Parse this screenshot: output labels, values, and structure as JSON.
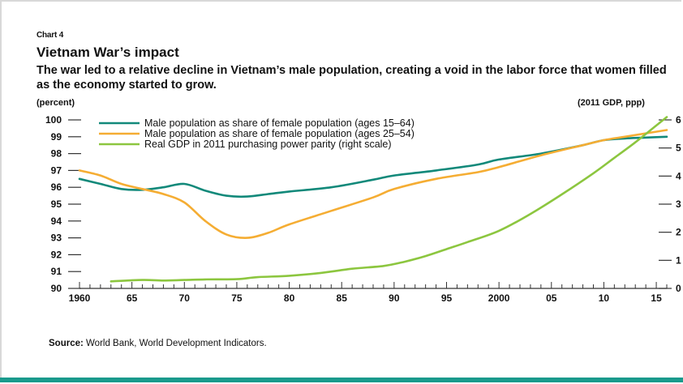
{
  "chart_label": "Chart 4",
  "title": "Vietnam War’s impact",
  "subtitle": "The war led to a relative decline in Vietnam’s male population, creating a void in the labor force that women filled as the economy started to grow.",
  "source_prefix": "Source:",
  "source_text": " World Bank, World Development Indicators.",
  "colors": {
    "teal": "#12897a",
    "orange": "#f5ad33",
    "green": "#8cc63f",
    "axis": "#333333",
    "bottom_rule": "#1a9a8c"
  },
  "chart_data": {
    "type": "line",
    "title": "Vietnam War’s impact",
    "y_left_label": "(percent)",
    "y_right_label": "(2011 GDP, ppp)",
    "x_range": [
      1960,
      2016
    ],
    "y_left_range": [
      90,
      100
    ],
    "y_right_range": [
      0,
      6
    ],
    "x_tick_labels": [
      {
        "x": 1960,
        "label": "1960"
      },
      {
        "x": 1965,
        "label": "65"
      },
      {
        "x": 1970,
        "label": "70"
      },
      {
        "x": 1975,
        "label": "75"
      },
      {
        "x": 1980,
        "label": "80"
      },
      {
        "x": 1985,
        "label": "85"
      },
      {
        "x": 1990,
        "label": "90"
      },
      {
        "x": 1995,
        "label": "95"
      },
      {
        "x": 2000,
        "label": "2000"
      },
      {
        "x": 2005,
        "label": "05"
      },
      {
        "x": 2010,
        "label": "10"
      },
      {
        "x": 2015,
        "label": "15"
      }
    ],
    "y_left_ticks": [
      90,
      91,
      92,
      93,
      94,
      95,
      96,
      97,
      98,
      99,
      100
    ],
    "y_right_ticks": [
      0,
      1,
      2,
      3,
      4,
      5,
      6
    ],
    "legend_position": "top-left",
    "grid": false,
    "series": [
      {
        "name": "Male population as share of female population (ages 15–64)",
        "axis": "left",
        "color_key": "teal",
        "x": [
          1960,
          1962,
          1964,
          1966,
          1968,
          1970,
          1972,
          1974,
          1976,
          1978,
          1980,
          1984,
          1988,
          1990,
          1994,
          1998,
          2000,
          2004,
          2008,
          2010,
          2012,
          2014,
          2016
        ],
        "y": [
          96.5,
          96.2,
          95.9,
          95.85,
          96.0,
          96.2,
          95.8,
          95.5,
          95.45,
          95.6,
          95.75,
          96.0,
          96.45,
          96.7,
          97.0,
          97.35,
          97.65,
          98.0,
          98.5,
          98.8,
          98.9,
          98.95,
          99.0
        ]
      },
      {
        "name": "Male population as share of female population (ages 25–54)",
        "axis": "left",
        "color_key": "orange",
        "x": [
          1960,
          1962,
          1964,
          1966,
          1968,
          1970,
          1972,
          1974,
          1976,
          1978,
          1980,
          1984,
          1988,
          1990,
          1994,
          1998,
          2000,
          2004,
          2008,
          2010,
          2012,
          2014,
          2016
        ],
        "y": [
          97.0,
          96.7,
          96.2,
          95.9,
          95.6,
          95.1,
          94.0,
          93.2,
          93.0,
          93.3,
          93.8,
          94.6,
          95.4,
          95.9,
          96.5,
          96.9,
          97.2,
          97.9,
          98.5,
          98.8,
          99.0,
          99.2,
          99.4
        ]
      },
      {
        "name": "Real GDP in 2011 purchasing power parity (right scale)",
        "axis": "right",
        "color_key": "green",
        "x": [
          1963,
          1966,
          1968,
          1970,
          1972,
          1975,
          1977,
          1980,
          1983,
          1986,
          1989,
          1991,
          1993,
          1995,
          1997,
          2000,
          2003,
          2006,
          2009,
          2011,
          2013,
          2015,
          2016
        ],
        "y": [
          0.25,
          0.3,
          0.28,
          0.3,
          0.32,
          0.33,
          0.4,
          0.45,
          0.55,
          0.7,
          0.8,
          0.95,
          1.15,
          1.4,
          1.65,
          2.05,
          2.65,
          3.35,
          4.1,
          4.65,
          5.2,
          5.8,
          6.1
        ]
      }
    ]
  }
}
